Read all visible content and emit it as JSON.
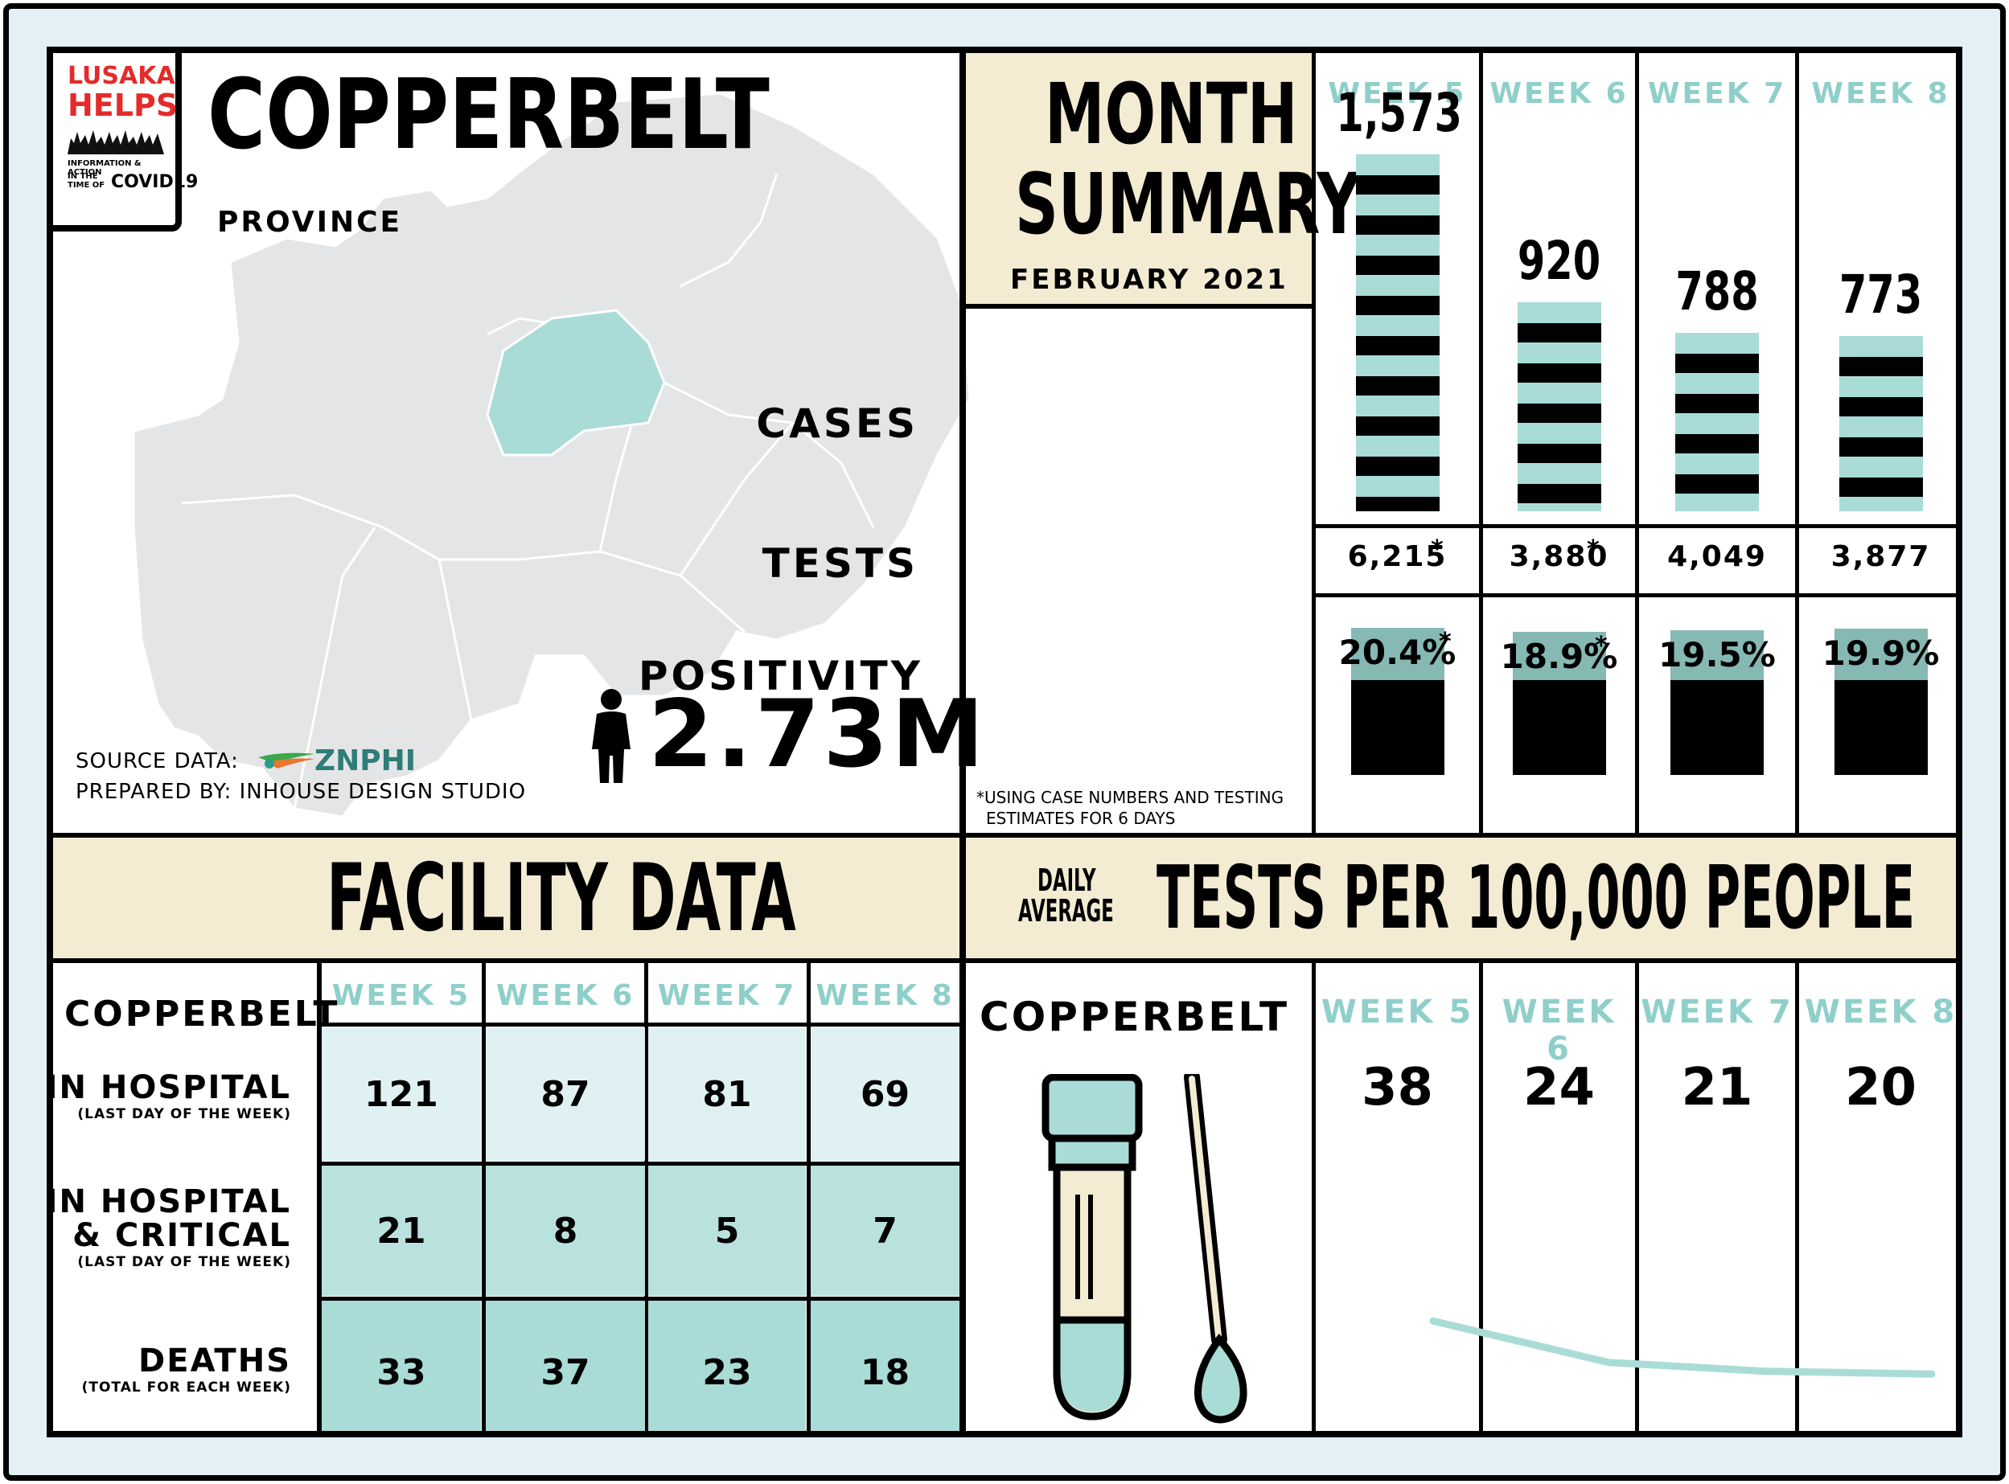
{
  "header": {
    "logo": {
      "line1": "LUSAKA",
      "line2": "HELPS",
      "tagline1": "INFORMATION & ACTION",
      "tagline2": "IN THE TIME OF",
      "tagline3": "COVID19"
    },
    "province_name": "COPPERBELT",
    "province_label": "PROVINCE",
    "source_label": "SOURCE DATA:",
    "source_org": "ZNPHI",
    "prepared_by": "PREPARED BY:  INHOUSE DESIGN STUDIO",
    "population": "2.73M"
  },
  "colors": {
    "accent": "#aadcd7",
    "positivity": "#86b8b4",
    "cream": "#f3ecd3",
    "week_text": "#8fcfca"
  },
  "summary": {
    "title_line1": "MONTH",
    "title_line2": "SUMMARY",
    "period": "FEBRUARY 2021",
    "cases_label": "CASES",
    "tests_label": "TESTS",
    "positivity_label": "POSITIVITY",
    "footnote_line1": "*USING CASE NUMBERS AND TESTING",
    "footnote_line2": "ESTIMATES FOR 6 DAYS",
    "weeks": [
      {
        "label": "WEEK 5",
        "cases": 1573,
        "cases_text": "1,573",
        "tests": "6,215",
        "tests_mark": "*",
        "positivity": 20.4,
        "positivity_text": "20.4%",
        "positivity_mark": "*"
      },
      {
        "label": "WEEK 6",
        "cases": 920,
        "cases_text": "920",
        "tests": "3,880",
        "tests_mark": "*",
        "positivity": 18.9,
        "positivity_text": "18.9%",
        "positivity_mark": "*"
      },
      {
        "label": "WEEK 7",
        "cases": 788,
        "cases_text": "788",
        "tests": "4,049",
        "tests_mark": "",
        "positivity": 19.5,
        "positivity_text": "19.5%",
        "positivity_mark": ""
      },
      {
        "label": "WEEK 8",
        "cases": 773,
        "cases_text": "773",
        "tests": "3,877",
        "tests_mark": "",
        "positivity": 19.9,
        "positivity_text": "19.9%",
        "positivity_mark": ""
      }
    ]
  },
  "facility": {
    "title": "FACILITY DATA",
    "region": "COPPERBELT",
    "weeks": [
      "WEEK 5",
      "WEEK 6",
      "WEEK 7",
      "WEEK 8"
    ],
    "rows": [
      {
        "label_line1": "IN HOSPITAL",
        "label_line2": "",
        "note": "(LAST DAY OF THE WEEK)",
        "values": [
          "121",
          "87",
          "81",
          "69"
        ]
      },
      {
        "label_line1": "IN HOSPITAL",
        "label_line2": "& CRITICAL",
        "note": "(LAST DAY OF THE WEEK)",
        "values": [
          "21",
          "8",
          "5",
          "7"
        ]
      },
      {
        "label_line1": "DEATHS",
        "label_line2": "",
        "note": "(TOTAL FOR EACH WEEK)",
        "values": [
          "33",
          "37",
          "23",
          "18"
        ]
      }
    ]
  },
  "tests_per_100k": {
    "prefix_line1": "DAILY",
    "prefix_line2": "AVERAGE",
    "title": "TESTS PER 100,000 PEOPLE",
    "region": "COPPERBELT",
    "weeks": [
      "WEEK 5",
      "WEEK 6",
      "WEEK 7",
      "WEEK 8"
    ],
    "values": [
      38,
      24,
      21,
      20
    ]
  }
}
